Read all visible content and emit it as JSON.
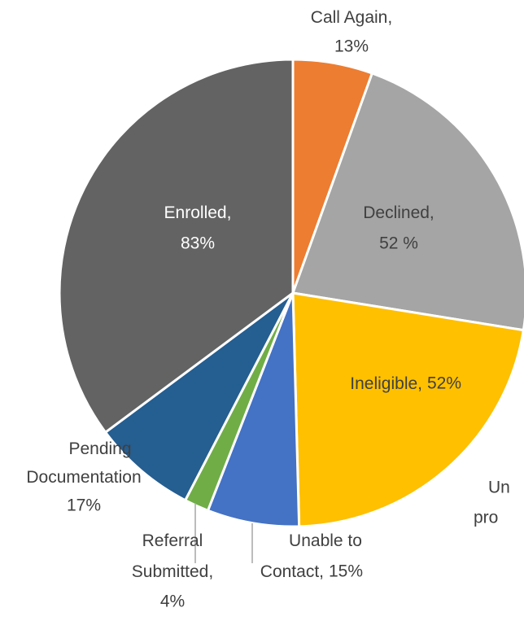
{
  "chart_data": {
    "type": "pie",
    "categories": [
      "Call Again,",
      "Declined,",
      "Ineligible,",
      "Unable to Contact,",
      "Referral Submitted,",
      "Pending Documentation",
      "Enrolled,"
    ],
    "values": [
      13,
      52,
      52,
      15,
      4,
      17,
      83
    ],
    "value_labels": [
      "13%",
      "52 %",
      "52%",
      "15%",
      "4%",
      "17%",
      "83%"
    ],
    "colors": [
      "#ed7d31",
      "#a5a5a5",
      "#ffc000",
      "#4472c4",
      "#70ad47",
      "#255e91",
      "#636363"
    ],
    "annotations": [
      "Un",
      "pro"
    ]
  }
}
